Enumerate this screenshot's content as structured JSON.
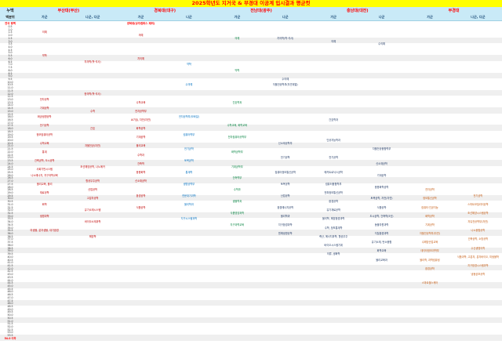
{
  "title": "2025학년도 지거국 & 부경대 이공계 입시결과 평균컷",
  "chart_data": {
    "type": "table",
    "title": "2025학년도 지거국 & 부경대 이공계 입시결과 평균컷",
    "corner": {
      "top": "누백",
      "bottom": "백분위"
    },
    "groups": [
      {
        "name": "부산대(부산)",
        "subs": [
          "가군",
          "나군, 다군"
        ]
      },
      {
        "name": "경북대(대구)",
        "subs": [
          "가군",
          "나군"
        ]
      },
      {
        "name": "전남대(광주)",
        "subs": [
          "가군",
          "나군"
        ]
      },
      {
        "name": "충남대(대전)",
        "subs": [
          "가군",
          "나군"
        ]
      },
      {
        "name": "부경대",
        "subs": [
          "가군",
          "나군, 다군"
        ]
      }
    ],
    "notes": {
      "left": "전국 평백",
      "annotation": "경북대(상주캠퍼스 제외)",
      "annotation_col": 2
    },
    "colors": {
      "title_bg": "#ffff00",
      "title_fg": "#ff0000",
      "header_bg": "#c9eaf7",
      "shade": "#efefef",
      "row_label": "#333333",
      "group_label": "#ff0000",
      "sub_label": "#1f4e79",
      "note": "#ff0000",
      "last_row": "#ff0000",
      "columns": [
        "#c00000",
        "#c00000",
        "#c00000",
        "#0070c0",
        "#00823e",
        "#1f3864",
        "#1f3864",
        "#1f3864",
        "#c55a11",
        "#c55a11"
      ]
    },
    "row_labels": [
      "0.5",
      "1.0",
      "1.5",
      "2.0",
      "2.5",
      "3.0",
      "3.5",
      "4.0",
      "4.5",
      "5.0",
      "5.5",
      "6.0",
      "6.5",
      "7.0",
      "7.5",
      "8.0",
      "8.5",
      "9.0",
      "9.5",
      "10.0",
      "10.5",
      "11.0",
      "11.5",
      "12.0",
      "12.5",
      "13.0",
      "13.5",
      "14.0",
      "14.5",
      "15.0",
      "15.5",
      "16.0",
      "16.5",
      "17.0",
      "17.5",
      "18.0",
      "18.5",
      "19.0",
      "19.5",
      "20.0",
      "20.5",
      "21.0",
      "21.5",
      "22.0",
      "22.5",
      "23.0",
      "23.5",
      "24.0",
      "24.5",
      "25.0",
      "25.5",
      "26.0",
      "26.5",
      "27.0",
      "27.5",
      "28.0",
      "28.5",
      "29.0",
      "29.5",
      "30.0",
      "30.5",
      "31.0",
      "31.5",
      "32.0",
      "32.5",
      "33.0",
      "33.5",
      "34.0",
      "34.5",
      "35.0",
      "35.5",
      "36.0",
      "36.5",
      "37.0",
      "37.5",
      "38.0",
      "38.5",
      "39.0",
      "39.5",
      "40.0",
      "40.5",
      "41.0",
      "41.5",
      "42.0",
      "42.5",
      "43.0",
      "43.5",
      "44.0",
      "44.5",
      "45.0",
      "45.5",
      "46.0",
      "46.5",
      "47.0",
      "47.5",
      "48.0",
      "48.5",
      "49.0",
      "49.5",
      "50.0",
      "50.5",
      "51.0",
      "51.5",
      "52.0",
      "52.5",
      "53.0",
      "53.5",
      "54.0 이하"
    ],
    "entries": [
      {
        "v": "1.5",
        "c": 0,
        "t": "의예"
      },
      {
        "v": "5.5",
        "c": 0,
        "t": "약학"
      },
      {
        "v": "13.0",
        "c": 0,
        "t": "전자공학"
      },
      {
        "v": "14.5",
        "c": 0,
        "t": "기계공학"
      },
      {
        "v": "16.0",
        "c": 0,
        "t": "화공생명공학"
      },
      {
        "v": "17.5",
        "c": 0,
        "t": "전기공학"
      },
      {
        "v": "19.0",
        "c": 0,
        "t": "정보컴퓨터공학"
      },
      {
        "v": "20.5",
        "c": 0,
        "t": "수학교육"
      },
      {
        "v": "22.0",
        "c": 0,
        "t": "통계"
      },
      {
        "v": "23.5",
        "c": 0,
        "t": "건축공학, 도시공학"
      },
      {
        "v": "25.0",
        "c": 0,
        "t": "사회기반시스템"
      },
      {
        "v": "26.0",
        "c": 0,
        "t": "나노에너지, 지구과학교육"
      },
      {
        "v": "27.5",
        "c": 0,
        "t": "물리교육, 물리"
      },
      {
        "v": "29.0",
        "c": 0,
        "t": "재료공학"
      },
      {
        "v": "31.0",
        "c": 0,
        "t": "화학"
      },
      {
        "v": "33.0",
        "c": 0,
        "t": "생명과학"
      },
      {
        "v": "35.5",
        "c": 0,
        "t": "미생물, 분자생물, 대기환경"
      },
      {
        "v": "6.5",
        "c": 1,
        "t": "치의학(학·석사)"
      },
      {
        "v": "12.0",
        "c": 1,
        "t": "한의학(학·석사)"
      },
      {
        "v": "15.0",
        "c": 1,
        "t": "수학"
      },
      {
        "v": "18.0",
        "c": 1,
        "t": "간호"
      },
      {
        "v": "21.0",
        "c": 1,
        "t": "자율전공(자연)"
      },
      {
        "v": "24.5",
        "c": 1,
        "t": "조선해양공학, 나노메카"
      },
      {
        "v": "27.0",
        "c": 1,
        "t": "항공우주공학"
      },
      {
        "v": "28.5",
        "c": 1,
        "t": "산업공학"
      },
      {
        "v": "30.0",
        "c": 1,
        "t": "고분자공학"
      },
      {
        "v": "32.0",
        "c": 1,
        "t": "유기소재시스템"
      },
      {
        "v": "34.0",
        "c": 1,
        "t": "바이오소재과학"
      },
      {
        "v": "36.5",
        "c": 1,
        "t": "해양학"
      },
      {
        "v": "2.0",
        "c": 2,
        "t": "의예"
      },
      {
        "v": "6.0",
        "c": 2,
        "t": "치의예"
      },
      {
        "v": "13.5",
        "c": 2,
        "t": "수학교육"
      },
      {
        "v": "15.0",
        "c": 2,
        "t": "전자공학부"
      },
      {
        "v": "16.5",
        "c": 2,
        "t": "AI기술, 자전(자연)"
      },
      {
        "v": "18.0",
        "c": 2,
        "t": "화학공학"
      },
      {
        "v": "19.5",
        "c": 2,
        "t": "기계공학"
      },
      {
        "v": "21.0",
        "c": 2,
        "t": "물리교육"
      },
      {
        "v": "22.5",
        "c": 2,
        "t": "수학과"
      },
      {
        "v": "24.0",
        "c": 2,
        "t": "건축학"
      },
      {
        "v": "25.5",
        "c": 2,
        "t": "응용화학"
      },
      {
        "v": "27.0",
        "c": 2,
        "t": "신소재공학"
      },
      {
        "v": "29.5",
        "c": 2,
        "t": "환경공학"
      },
      {
        "v": "31.5",
        "c": 2,
        "t": "식품공학"
      },
      {
        "v": "7.0",
        "c": 3,
        "t": "약학"
      },
      {
        "v": "10.5",
        "c": 3,
        "t": "수의예"
      },
      {
        "v": "16.0",
        "c": 3,
        "t": "전자공학부(모바일)"
      },
      {
        "v": "19.0",
        "c": 3,
        "t": "컴퓨터학부"
      },
      {
        "v": "21.5",
        "c": 3,
        "t": "전기공학"
      },
      {
        "v": "23.5",
        "c": 3,
        "t": "토목공학"
      },
      {
        "v": "25.5",
        "c": 3,
        "t": "통계학"
      },
      {
        "v": "27.5",
        "c": 3,
        "t": "생명공학부"
      },
      {
        "v": "29.5",
        "c": 3,
        "t": "천문대기과학"
      },
      {
        "v": "31.0",
        "c": 3,
        "t": "물리학과"
      },
      {
        "v": "33.5",
        "c": 3,
        "t": "지구시스템과학"
      },
      {
        "v": "2.5",
        "c": 4,
        "t": "의예"
      },
      {
        "v": "8.0",
        "c": 4,
        "t": "약학"
      },
      {
        "v": "13.5",
        "c": 4,
        "t": "간호학과"
      },
      {
        "v": "17.5",
        "c": 4,
        "t": "수학교육, 화학교육"
      },
      {
        "v": "19.5",
        "c": 4,
        "t": "전자컴퓨터공학부"
      },
      {
        "v": "22.0",
        "c": 4,
        "t": "화학공학부"
      },
      {
        "v": "24.5",
        "c": 4,
        "t": "기계공학부"
      },
      {
        "v": "26.5",
        "c": 4,
        "t": "건축학부"
      },
      {
        "v": "28.5",
        "c": 4,
        "t": "수학과"
      },
      {
        "v": "30.5",
        "c": 4,
        "t": "생물학과"
      },
      {
        "v": "32.5",
        "c": 4,
        "t": "식품영양과학"
      },
      {
        "v": "34.5",
        "c": 4,
        "t": "지구과학교육"
      },
      {
        "v": "2.5",
        "c": 5,
        "t": "치의학(학·석사)"
      },
      {
        "v": "9.5",
        "c": 5,
        "t": "수의예"
      },
      {
        "v": "10.5",
        "c": 5,
        "t": "자율전공학부(자연계열)"
      },
      {
        "v": "20.5",
        "c": 5,
        "t": "신소재공학부"
      },
      {
        "v": "23.0",
        "c": 5,
        "t": "전기공학"
      },
      {
        "v": "25.5",
        "c": 5,
        "t": "컴퓨터정보통신공학"
      },
      {
        "v": "27.5",
        "c": 5,
        "t": "토목공학"
      },
      {
        "v": "29.5",
        "c": 5,
        "t": "산업공학"
      },
      {
        "v": "31.5",
        "c": 5,
        "t": "환경에너지공학"
      },
      {
        "v": "33.0",
        "c": 5,
        "t": "물리학과"
      },
      {
        "v": "34.5",
        "c": 5,
        "t": "지구환경과학"
      },
      {
        "v": "36.0",
        "c": 5,
        "t": "원예생명공학"
      },
      {
        "v": "3.0",
        "c": 6,
        "t": "의예"
      },
      {
        "v": "16.5",
        "c": 6,
        "t": "간호학과"
      },
      {
        "v": "20.0",
        "c": 6,
        "t": "인공지능학과"
      },
      {
        "v": "23.0",
        "c": 6,
        "t": "전기공학"
      },
      {
        "v": "25.5",
        "c": 6,
        "t": "메카트로닉스공학"
      },
      {
        "v": "27.5",
        "c": 6,
        "t": "컴퓨터융합학부"
      },
      {
        "v": "29.0",
        "c": 6,
        "t": "전파정보통신공학"
      },
      {
        "v": "30.5",
        "c": 6,
        "t": "환경공학"
      },
      {
        "v": "32.0",
        "c": 6,
        "t": "유기재료공학"
      },
      {
        "v": "33.5",
        "c": 6,
        "t": "물리학, 해양환경과학"
      },
      {
        "v": "35.0",
        "c": 6,
        "t": "수학, 정보통계학"
      },
      {
        "v": "36.5",
        "c": 6,
        "t": "축산, 에너지과학, 항공우주"
      },
      {
        "v": "38.0",
        "c": 6,
        "t": "바이오시스템기계"
      },
      {
        "v": "39.5",
        "c": 6,
        "t": "의류, 생화학"
      },
      {
        "v": "3.5",
        "c": 7,
        "t": "수의예"
      },
      {
        "v": "21.5",
        "c": 7,
        "t": "자율전공융합학부"
      },
      {
        "v": "24.0",
        "c": 7,
        "t": "신소재공학"
      },
      {
        "v": "26.0",
        "c": 7,
        "t": "기계공학"
      },
      {
        "v": "28.0",
        "c": 7,
        "t": "응용화학공학"
      },
      {
        "v": "30.0",
        "c": 7,
        "t": "토목공학, 자전(자연)"
      },
      {
        "v": "31.5",
        "c": 7,
        "t": "식품공학"
      },
      {
        "v": "33.0",
        "c": 7,
        "t": "도시공학, 건축학(5년)"
      },
      {
        "v": "34.5",
        "c": 7,
        "t": "동물자원과학"
      },
      {
        "v": "36.0",
        "c": 7,
        "t": "지질환경과학"
      },
      {
        "v": "37.5",
        "c": 7,
        "t": "유기소재, 탄소융합"
      },
      {
        "v": "39.0",
        "c": 7,
        "t": "화학교육"
      },
      {
        "v": "40.5",
        "c": 7,
        "t": "물리교육과"
      },
      {
        "v": "28.5",
        "c": 8,
        "t": "전자공학"
      },
      {
        "v": "30.0",
        "c": 8,
        "t": "정보통신공학"
      },
      {
        "v": "31.5",
        "c": 8,
        "t": "컴퓨터·인공지능"
      },
      {
        "v": "33.0",
        "c": 8,
        "t": "화학공학"
      },
      {
        "v": "34.5",
        "c": 8,
        "t": "기계공학"
      },
      {
        "v": "36.0",
        "c": 8,
        "t": "자율전공학부(자연)"
      },
      {
        "v": "37.5",
        "c": 8,
        "t": "수해양산업교육"
      },
      {
        "v": "39.0",
        "c": 8,
        "t": "데이터정보과학부"
      },
      {
        "v": "40.5",
        "c": 8,
        "t": "물리학, 과학컴퓨팅"
      },
      {
        "v": "42.0",
        "c": 8,
        "t": "환경공학"
      },
      {
        "v": "44.5",
        "c": 8,
        "t": "스마트헬스케어"
      },
      {
        "v": "29.5",
        "c": 9,
        "t": "전기공학"
      },
      {
        "v": "31.0",
        "c": 9,
        "t": "스마트모빌리티공학"
      },
      {
        "v": "32.5",
        "c": 9,
        "t": "조선해양시스템공학"
      },
      {
        "v": "34.0",
        "c": 9,
        "t": "자유전공학부(자연)"
      },
      {
        "v": "35.5",
        "c": 9,
        "t": "나노융합공학"
      },
      {
        "v": "37.0",
        "c": 9,
        "t": "건축공학, 소방공학"
      },
      {
        "v": "38.5",
        "c": 9,
        "t": "수산생명의학"
      },
      {
        "v": "40.0",
        "c": 9,
        "t": "식품과학, 고분자, 분자바이오, 미생물학"
      },
      {
        "v": "41.5",
        "c": 9,
        "t": "지구환경시스템과학"
      },
      {
        "v": "43.0",
        "c": 9,
        "t": "냉동공조공학"
      }
    ]
  }
}
